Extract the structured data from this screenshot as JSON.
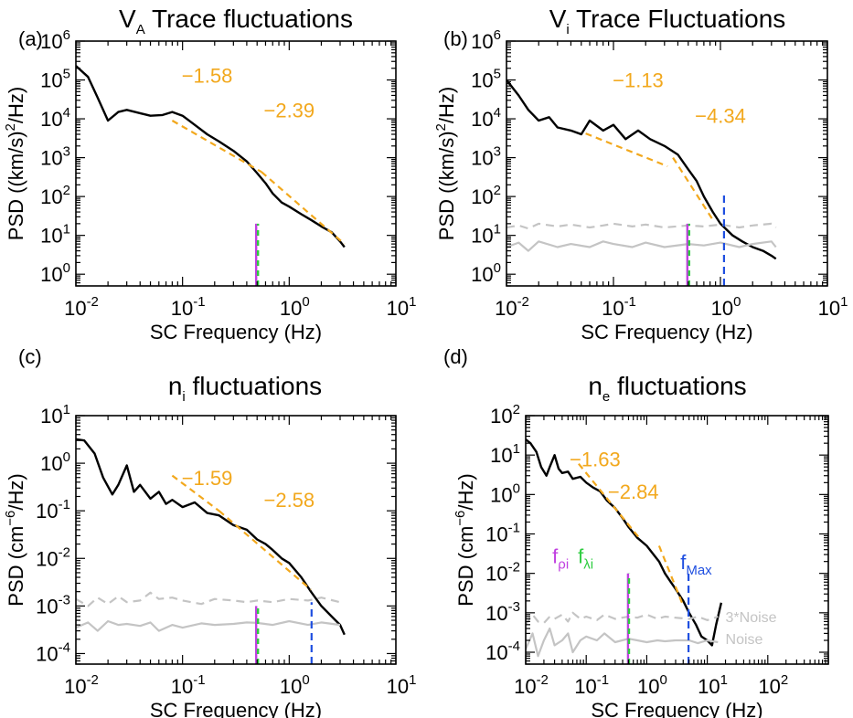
{
  "colors": {
    "data": "#000000",
    "fit": "#f2a81d",
    "noise": "#c4c4c4",
    "f_rho": "#c040e0",
    "f_lambda": "#2ecc40",
    "f_max": "#1f4fe0"
  },
  "chart_data": [
    {
      "type": "line",
      "panel": "(a)",
      "title": {
        "base": "V",
        "sub": "A",
        "rest": " Trace fluctuations"
      },
      "xlabel": "SC Frequency (Hz)",
      "ylabel": {
        "a": "PSD ((km/s)",
        "sup": "2",
        "b": "/Hz)"
      },
      "xscale": "log",
      "yscale": "log",
      "xlim": [
        0.01,
        10
      ],
      "ylim": [
        0.5,
        1000000
      ],
      "xticks": [
        {
          "m": "10",
          "e": "-2"
        },
        {
          "m": "10",
          "e": "-1"
        },
        {
          "m": "10",
          "e": "0"
        },
        {
          "m": "10",
          "e": "1"
        }
      ],
      "yticks": [
        {
          "m": "10",
          "e": "0"
        },
        {
          "m": "10",
          "e": "1"
        },
        {
          "m": "10",
          "e": "2"
        },
        {
          "m": "10",
          "e": "3"
        },
        {
          "m": "10",
          "e": "4"
        },
        {
          "m": "10",
          "e": "5"
        },
        {
          "m": "10",
          "e": "6"
        }
      ],
      "series": [
        {
          "role": "data",
          "x": [
            0.01,
            0.013,
            0.016,
            0.02,
            0.025,
            0.03,
            0.04,
            0.05,
            0.065,
            0.08,
            0.1,
            0.13,
            0.17,
            0.22,
            0.3,
            0.4,
            0.5,
            0.6,
            0.7,
            0.85,
            1.0,
            1.3,
            1.6,
            2.0,
            2.5,
            3.0,
            3.3
          ],
          "y": [
            230000,
            120000,
            35000,
            9000,
            15000,
            17000,
            14000,
            12000,
            12500,
            15000,
            12000,
            7000,
            4000,
            2600,
            1500,
            800,
            400,
            220,
            120,
            70,
            55,
            35,
            25,
            17,
            12,
            7,
            5
          ]
        },
        {
          "role": "fit",
          "x": [
            0.08,
            0.55
          ],
          "y": [
            9000,
            430
          ]
        },
        {
          "role": "fit",
          "x": [
            0.55,
            3.3
          ],
          "y": [
            430,
            6
          ]
        },
        {
          "role": "marker-rho",
          "x": [
            0.49,
            0.49
          ],
          "y": [
            0.5,
            20
          ]
        },
        {
          "role": "marker-lambda",
          "x": [
            0.51,
            0.51
          ],
          "y": [
            0.5,
            20
          ]
        }
      ],
      "annotations": [
        {
          "text": "−1.58",
          "x": 0.17,
          "y": 130000
        },
        {
          "text": "−2.39",
          "x": 1.0,
          "y": 17000
        }
      ]
    },
    {
      "type": "line",
      "panel": "(b)",
      "title": {
        "base": "V",
        "sub": "i",
        "rest": " Trace Fluctuations"
      },
      "xlabel": "SC Frequency (Hz)",
      "ylabel": {
        "a": "PSD ((km/s)",
        "sup": "2",
        "b": "/Hz)"
      },
      "xscale": "log",
      "yscale": "log",
      "xlim": [
        0.01,
        10
      ],
      "ylim": [
        0.5,
        1000000
      ],
      "xticks": [
        {
          "m": "10",
          "e": "-2"
        },
        {
          "m": "10",
          "e": "-1"
        },
        {
          "m": "10",
          "e": "0"
        },
        {
          "m": "10",
          "e": "1"
        }
      ],
      "yticks": [
        {
          "m": "10",
          "e": "0"
        },
        {
          "m": "10",
          "e": "1"
        },
        {
          "m": "10",
          "e": "2"
        },
        {
          "m": "10",
          "e": "3"
        },
        {
          "m": "10",
          "e": "4"
        },
        {
          "m": "10",
          "e": "5"
        },
        {
          "m": "10",
          "e": "6"
        }
      ],
      "series": [
        {
          "role": "data",
          "x": [
            0.01,
            0.013,
            0.016,
            0.02,
            0.025,
            0.03,
            0.04,
            0.05,
            0.06,
            0.08,
            0.1,
            0.13,
            0.17,
            0.22,
            0.3,
            0.4,
            0.5,
            0.6,
            0.7,
            0.85,
            1.0,
            1.3,
            1.6,
            2.0,
            2.5,
            3.0,
            3.3
          ],
          "y": [
            100000,
            40000,
            17000,
            9000,
            11000,
            6000,
            5000,
            4000,
            9000,
            5000,
            7000,
            3000,
            5000,
            3000,
            2000,
            1200,
            500,
            250,
            100,
            40,
            20,
            10,
            7,
            5,
            4,
            3,
            2.5
          ]
        },
        {
          "role": "noise3",
          "x": [
            0.01,
            0.013,
            0.016,
            0.02,
            0.03,
            0.04,
            0.06,
            0.08,
            0.1,
            0.15,
            0.2,
            0.3,
            0.5,
            0.7,
            1.0,
            1.5,
            2.0,
            3.0,
            3.3
          ],
          "y": [
            16,
            18,
            15,
            20,
            17,
            19,
            16,
            18,
            20,
            17,
            19,
            16,
            18,
            17,
            19,
            16,
            18,
            20,
            16
          ]
        },
        {
          "role": "noise",
          "x": [
            0.01,
            0.013,
            0.016,
            0.02,
            0.03,
            0.04,
            0.06,
            0.08,
            0.1,
            0.15,
            0.2,
            0.3,
            0.5,
            0.7,
            1.0,
            1.5,
            2.0,
            3.0,
            3.3
          ],
          "y": [
            5,
            6.5,
            4,
            7,
            5,
            6,
            5,
            7,
            6,
            5,
            6.5,
            5,
            6,
            5.5,
            6.5,
            5,
            6,
            7,
            5
          ]
        },
        {
          "role": "fit",
          "x": [
            0.055,
            0.32
          ],
          "y": [
            4200,
            600
          ]
        },
        {
          "role": "fit",
          "x": [
            0.36,
            0.85
          ],
          "y": [
            1000,
            25
          ]
        },
        {
          "role": "marker-rho",
          "x": [
            0.49,
            0.49
          ],
          "y": [
            0.5,
            20
          ]
        },
        {
          "role": "marker-lambda",
          "x": [
            0.51,
            0.51
          ],
          "y": [
            0.5,
            20
          ]
        },
        {
          "role": "marker-max",
          "x": [
            1.08,
            1.08
          ],
          "y": [
            0.5,
            120
          ]
        }
      ],
      "annotations": [
        {
          "text": "−1.13",
          "x": 0.17,
          "y": 100000
        },
        {
          "text": "−4.34",
          "x": 1.0,
          "y": 12000
        }
      ]
    },
    {
      "type": "line",
      "panel": "(c)",
      "title": {
        "base": "n",
        "sub": "i",
        "rest": " fluctuations"
      },
      "xlabel": "SC Frequency (Hz)",
      "ylabel": {
        "a": "PSD (cm",
        "sup": "−6",
        "b": "/Hz)"
      },
      "xscale": "log",
      "yscale": "log",
      "xlim": [
        0.01,
        10
      ],
      "ylim": [
        6e-05,
        10
      ],
      "xticks": [
        {
          "m": "10",
          "e": "-2"
        },
        {
          "m": "10",
          "e": "-1"
        },
        {
          "m": "10",
          "e": "0"
        },
        {
          "m": "10",
          "e": "1"
        }
      ],
      "yticks": [
        {
          "m": "10",
          "e": "-4"
        },
        {
          "m": "10",
          "e": "-3"
        },
        {
          "m": "10",
          "e": "-2"
        },
        {
          "m": "10",
          "e": "-1"
        },
        {
          "m": "10",
          "e": "0"
        },
        {
          "m": "10",
          "e": "1"
        }
      ],
      "series": [
        {
          "role": "data",
          "x": [
            0.01,
            0.012,
            0.015,
            0.018,
            0.022,
            0.025,
            0.03,
            0.035,
            0.04,
            0.05,
            0.06,
            0.07,
            0.08,
            0.1,
            0.13,
            0.17,
            0.22,
            0.3,
            0.4,
            0.5,
            0.6,
            0.7,
            0.85,
            1.0,
            1.3,
            1.6,
            2.0,
            2.5,
            3.0,
            3.3
          ],
          "y": [
            3.2,
            3.0,
            1.6,
            0.5,
            0.22,
            0.35,
            0.9,
            0.25,
            0.35,
            0.18,
            0.25,
            0.14,
            0.17,
            0.12,
            0.15,
            0.09,
            0.08,
            0.05,
            0.04,
            0.025,
            0.02,
            0.015,
            0.01,
            0.008,
            0.004,
            0.002,
            0.001,
            0.0006,
            0.0004,
            0.00025
          ]
        },
        {
          "role": "noise3",
          "x": [
            0.01,
            0.013,
            0.016,
            0.02,
            0.025,
            0.03,
            0.04,
            0.05,
            0.06,
            0.08,
            0.1,
            0.15,
            0.2,
            0.3,
            0.4,
            0.5,
            0.7,
            1.0,
            1.5,
            2.0,
            3.0
          ],
          "y": [
            0.0014,
            0.001,
            0.0015,
            0.0011,
            0.0016,
            0.0012,
            0.0013,
            0.0019,
            0.0014,
            0.0015,
            0.0013,
            0.0011,
            0.0014,
            0.0013,
            0.0012,
            0.0013,
            0.0012,
            0.0014,
            0.0013,
            0.0015,
            0.0012
          ]
        },
        {
          "role": "noise",
          "x": [
            0.01,
            0.013,
            0.016,
            0.02,
            0.025,
            0.03,
            0.04,
            0.05,
            0.06,
            0.08,
            0.1,
            0.15,
            0.2,
            0.3,
            0.4,
            0.5,
            0.7,
            1.0,
            1.5,
            2.0,
            3.0
          ],
          "y": [
            0.00035,
            0.00045,
            0.0003,
            0.00048,
            0.0004,
            0.00042,
            0.00038,
            0.00045,
            0.0003,
            0.0004,
            0.00035,
            0.00043,
            0.0004,
            0.00042,
            0.00045,
            0.00044,
            0.0004,
            0.00048,
            0.0004,
            0.00045,
            0.0004
          ]
        },
        {
          "role": "fit",
          "x": [
            0.08,
            0.22
          ],
          "y": [
            0.55,
            0.1
          ]
        },
        {
          "role": "fit",
          "x": [
            0.22,
            1.6
          ],
          "y": [
            0.1,
            0.0022
          ]
        },
        {
          "role": "marker-rho",
          "x": [
            0.49,
            0.49
          ],
          "y": [
            6e-05,
            0.001
          ]
        },
        {
          "role": "marker-lambda",
          "x": [
            0.51,
            0.51
          ],
          "y": [
            6e-05,
            0.001
          ]
        },
        {
          "role": "marker-max",
          "x": [
            1.62,
            1.62
          ],
          "y": [
            6e-05,
            0.0012
          ]
        }
      ],
      "annotations": [
        {
          "text": "−1.59",
          "x": 0.17,
          "y": 0.5
        },
        {
          "text": "−2.58",
          "x": 1.0,
          "y": 0.17
        }
      ]
    },
    {
      "type": "line",
      "panel": "(d)",
      "title": {
        "base": "n",
        "sub": "e",
        "rest": " fluctuations"
      },
      "xlabel": "SC Frequency (Hz)",
      "ylabel": {
        "a": "PSD (cm",
        "sup": "−6",
        "b": "/Hz)"
      },
      "xscale": "log",
      "yscale": "log",
      "xlim": [
        0.01,
        1000
      ],
      "ylim": [
        5e-05,
        100
      ],
      "xticks": [
        {
          "m": "10",
          "e": "-2"
        },
        {
          "m": "10",
          "e": "-1"
        },
        {
          "m": "10",
          "e": "0"
        },
        {
          "m": "10",
          "e": "1"
        },
        {
          "m": "10",
          "e": "2"
        }
      ],
      "yticks": [
        {
          "m": "10",
          "e": "-4"
        },
        {
          "m": "10",
          "e": "-3"
        },
        {
          "m": "10",
          "e": "-2"
        },
        {
          "m": "10",
          "e": "-1"
        },
        {
          "m": "10",
          "e": "0"
        },
        {
          "m": "10",
          "e": "1"
        },
        {
          "m": "10",
          "e": "2"
        }
      ],
      "series": [
        {
          "role": "data",
          "x": [
            0.01,
            0.012,
            0.015,
            0.018,
            0.022,
            0.025,
            0.03,
            0.035,
            0.04,
            0.05,
            0.06,
            0.08,
            0.1,
            0.13,
            0.17,
            0.22,
            0.3,
            0.4,
            0.5,
            0.7,
            1.0,
            1.3,
            1.6,
            2.0,
            2.5,
            3.0,
            4.0,
            5.0,
            6.5,
            8.0,
            10.0,
            12.0,
            14.0,
            17.0
          ],
          "y": [
            25,
            20,
            12,
            5,
            3,
            5,
            10,
            4.5,
            3.5,
            3.8,
            2.5,
            2.8,
            2.0,
            1.5,
            1.2,
            0.7,
            0.45,
            0.25,
            0.15,
            0.08,
            0.05,
            0.03,
            0.02,
            0.01,
            0.006,
            0.004,
            0.002,
            0.001,
            0.0005,
            0.00025,
            0.0002,
            0.00015,
            0.0005,
            0.0018
          ]
        },
        {
          "role": "noise3",
          "x": [
            0.01,
            0.013,
            0.016,
            0.02,
            0.025,
            0.03,
            0.04,
            0.05,
            0.06,
            0.08,
            0.1,
            0.15,
            0.2,
            0.3,
            0.5,
            0.7,
            1.0,
            1.5,
            2.0,
            3.0,
            5.0,
            7.0,
            10.0,
            15.0
          ],
          "y": [
            0.0005,
            0.0009,
            0.0006,
            0.00055,
            0.0008,
            0.0007,
            0.0009,
            0.0006,
            0.001,
            0.0007,
            0.0008,
            0.00065,
            0.0009,
            0.0007,
            0.0008,
            0.00075,
            0.0009,
            0.0007,
            0.0008,
            0.00075,
            0.0007,
            0.0008,
            0.00065,
            0.0008
          ]
        },
        {
          "role": "noise",
          "x": [
            0.01,
            0.013,
            0.016,
            0.02,
            0.025,
            0.03,
            0.04,
            0.05,
            0.06,
            0.08,
            0.1,
            0.15,
            0.2,
            0.3,
            0.5,
            0.7,
            1.0,
            1.5,
            2.0,
            3.0,
            5.0,
            7.0,
            10.0,
            15.0
          ],
          "y": [
            0.00012,
            0.0003,
            8e-05,
            0.0002,
            0.0004,
            0.00015,
            0.0002,
            0.0003,
            0.0001,
            0.0002,
            0.00025,
            0.0002,
            0.0003,
            0.00018,
            0.00022,
            0.0002,
            0.00018,
            0.0002,
            0.00019,
            0.0002,
            0.0002,
            0.00017,
            0.0002,
            0.00018
          ]
        },
        {
          "role": "fit",
          "x": [
            0.075,
            0.75
          ],
          "y": [
            6,
            0.08
          ]
        },
        {
          "role": "fit",
          "x": [
            1.6,
            4.0
          ],
          "y": [
            0.05,
            0.0015
          ]
        },
        {
          "role": "marker-rho",
          "x": [
            0.49,
            0.49
          ],
          "y": [
            5e-05,
            0.01
          ]
        },
        {
          "role": "marker-lambda",
          "x": [
            0.51,
            0.51
          ],
          "y": [
            5e-05,
            0.01
          ]
        },
        {
          "role": "marker-max",
          "x": [
            4.9,
            4.9
          ],
          "y": [
            5e-05,
            0.01
          ]
        }
      ],
      "annotations": [
        {
          "text": "−1.63",
          "x": 0.14,
          "y": 8
        },
        {
          "text": "−2.84",
          "x": 0.6,
          "y": 1.2
        }
      ],
      "legend": {
        "f_rho": {
          "base": "f",
          "sub": "ρi"
        },
        "f_lambda": {
          "base": "f",
          "sub": "λi"
        },
        "f_max": {
          "base": "f",
          "sub": "Max"
        },
        "noise3": "3*Noise",
        "noise": "Noise"
      }
    }
  ]
}
